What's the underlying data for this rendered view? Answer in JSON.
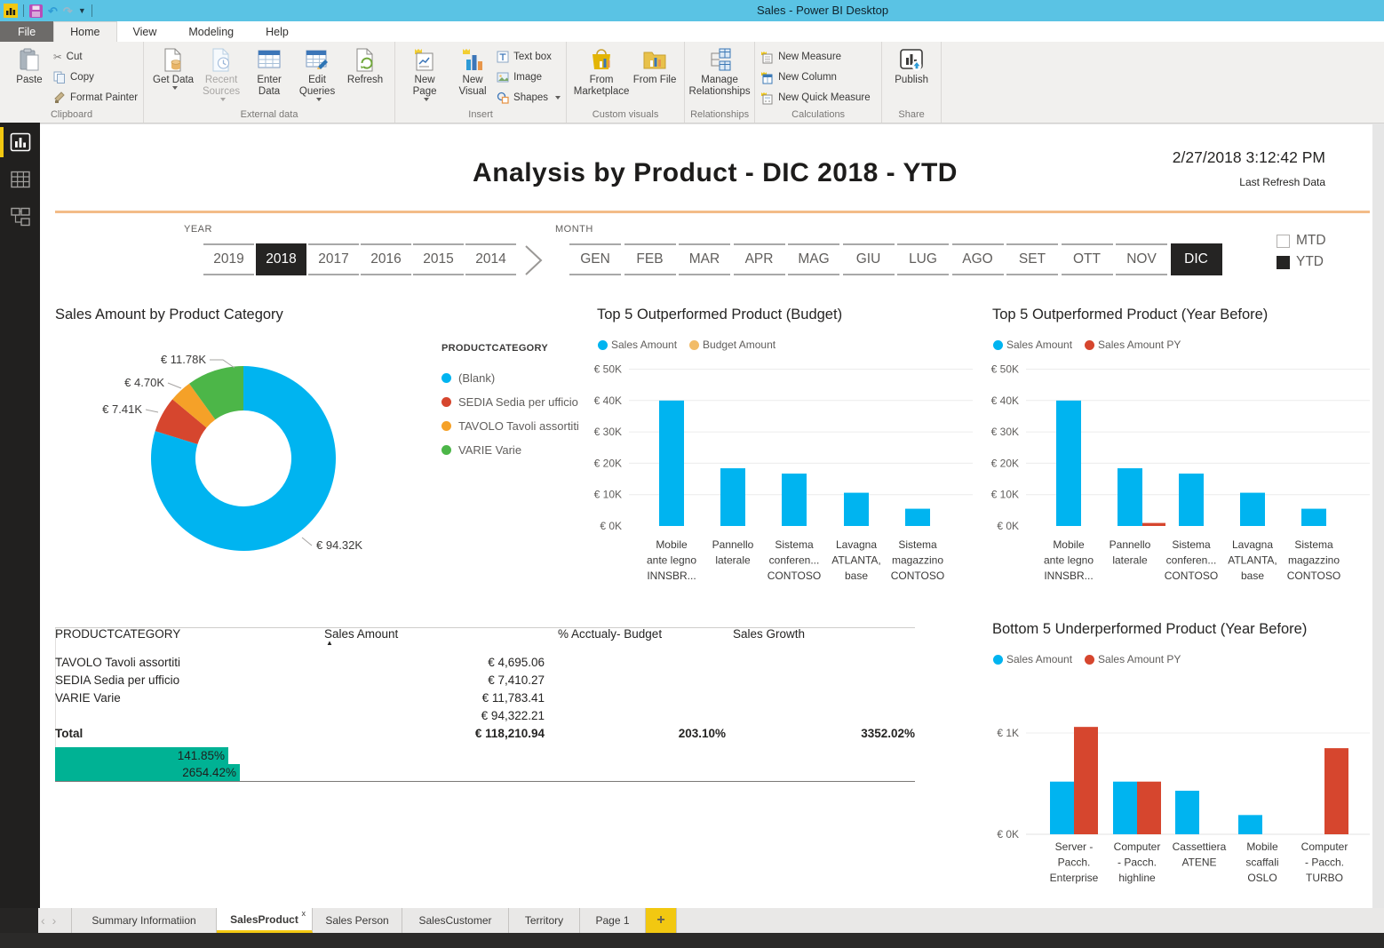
{
  "window": {
    "title": "Sales - Power BI Desktop"
  },
  "icons": {
    "prev_page": "‹",
    "next_page": "›",
    "sort_asc": "▲"
  },
  "ribbon": {
    "tabs": [
      "File",
      "Home",
      "View",
      "Modeling",
      "Help"
    ],
    "active_tab": "Home",
    "clipboard": {
      "label": "Clipboard",
      "paste": "Paste",
      "cut": "Cut",
      "copy": "Copy",
      "format_painter": "Format Painter"
    },
    "external_data": {
      "label": "External data",
      "get_data": "Get Data",
      "recent_sources": "Recent Sources",
      "enter_data": "Enter Data",
      "edit_queries": "Edit Queries",
      "refresh": "Refresh"
    },
    "insert": {
      "label": "Insert",
      "new_page": "New Page",
      "new_visual": "New Visual",
      "text_box": "Text box",
      "image": "Image",
      "shapes": "Shapes"
    },
    "custom_visuals": {
      "label": "Custom visuals",
      "from_marketplace": "From Marketplace",
      "from_file": "From File"
    },
    "relationships": {
      "label": "Relationships",
      "manage": "Manage Relationships"
    },
    "calculations": {
      "label": "Calculations",
      "new_measure": "New Measure",
      "new_column": "New Column",
      "new_quick_measure": "New Quick Measure"
    },
    "share": {
      "label": "Share",
      "publish": "Publish"
    }
  },
  "report": {
    "title": "Analysis by Product - DIC 2018 - YTD",
    "refresh_time": "2/27/2018 3:12:42 PM",
    "refresh_label": "Last Refresh Data",
    "year": {
      "label": "YEAR",
      "options": [
        "2019",
        "2018",
        "2017",
        "2016",
        "2015",
        "2014"
      ],
      "selected": "2018"
    },
    "month": {
      "label": "MONTH",
      "options": [
        "GEN",
        "FEB",
        "MAR",
        "APR",
        "MAG",
        "GIU",
        "LUG",
        "AGO",
        "SET",
        "OTT",
        "NOV",
        "DIC"
      ],
      "selected": "DIC"
    },
    "period": {
      "options": [
        "MTD",
        "YTD"
      ],
      "selected": "YTD"
    }
  },
  "chart_data": [
    {
      "type": "pie",
      "title": "Sales Amount by Product Category",
      "legend_title": "PRODUCTCATEGORY",
      "slices": [
        {
          "label": "(Blank)",
          "value_k": 94.32,
          "display": "€ 94.32K",
          "color": "#00b4f0"
        },
        {
          "label": "SEDIA Sedia per ufficio",
          "value_k": 7.41,
          "display": "€ 7.41K",
          "color": "#d6462e"
        },
        {
          "label": "TAVOLO Tavoli assortiti",
          "value_k": 4.7,
          "display": "€ 4.70K",
          "color": "#f5a128"
        },
        {
          "label": "VARIE Varie",
          "value_k": 11.78,
          "display": "€ 11.78K",
          "color": "#4cb648"
        }
      ]
    },
    {
      "type": "bar",
      "title": "Top 5 Outperformed Product (Budget)",
      "legend": [
        {
          "name": "Sales Amount",
          "color": "#00b4f0"
        },
        {
          "name": "Budget Amount",
          "color": "#f2bc68"
        }
      ],
      "categories": [
        [
          "Mobile",
          "ante legno",
          "INNSBR..."
        ],
        [
          "Pannello",
          "laterale"
        ],
        [
          "Sistema",
          "conferen...",
          "CONTOSO"
        ],
        [
          "Lavagna",
          "ATLANTA,",
          "base"
        ],
        [
          "Sistema",
          "magazzino",
          "CONTOSO"
        ]
      ],
      "series": [
        {
          "name": "Sales Amount",
          "values_k": [
            40,
            18.4,
            16.7,
            10.6,
            5.5
          ]
        },
        {
          "name": "Budget Amount",
          "values_k": [
            0,
            0,
            0,
            0,
            0
          ]
        }
      ],
      "yticks": [
        {
          "k": 0,
          "label": "€ 0K",
          "grid": false
        },
        {
          "k": 10,
          "label": "€ 10K",
          "grid": true
        },
        {
          "k": 20,
          "label": "€ 20K",
          "grid": true
        },
        {
          "k": 30,
          "label": "€ 30K",
          "grid": true
        },
        {
          "k": 40,
          "label": "€ 40K",
          "grid": true
        },
        {
          "k": 50,
          "label": "€ 50K",
          "grid": true
        }
      ]
    },
    {
      "type": "bar",
      "title": "Top 5 Outperformed Product (Year Before)",
      "legend": [
        {
          "name": "Sales Amount",
          "color": "#00b4f0"
        },
        {
          "name": "Sales Amount PY",
          "color": "#d6462e"
        }
      ],
      "categories": [
        [
          "Mobile",
          "ante legno",
          "INNSBR..."
        ],
        [
          "Pannello",
          "laterale"
        ],
        [
          "Sistema",
          "conferen...",
          "CONTOSO"
        ],
        [
          "Lavagna",
          "ATLANTA,",
          "base"
        ],
        [
          "Sistema",
          "magazzino",
          "CONTOSO"
        ]
      ],
      "series": [
        {
          "name": "Sales Amount",
          "values_k": [
            40,
            18.4,
            16.7,
            10.6,
            5.5
          ]
        },
        {
          "name": "Sales Amount PY",
          "values_k": [
            0,
            0.96,
            0,
            0,
            0
          ]
        }
      ],
      "yticks": [
        {
          "k": 0,
          "label": "€ 0K",
          "grid": false
        },
        {
          "k": 10,
          "label": "€ 10K",
          "grid": true
        },
        {
          "k": 20,
          "label": "€ 20K",
          "grid": true
        },
        {
          "k": 30,
          "label": "€ 30K",
          "grid": true
        },
        {
          "k": 40,
          "label": "€ 40K",
          "grid": true
        },
        {
          "k": 50,
          "label": "€ 50K",
          "grid": true
        }
      ]
    },
    {
      "type": "table",
      "columns": [
        "PRODUCTCATEGORY",
        "Sales Amount",
        "% Acctualy- Budget",
        "Sales Growth"
      ],
      "sort_column": "Sales Amount",
      "rows": [
        {
          "category": "TAVOLO Tavoli assortiti",
          "sales": "€ 4,695.06",
          "pct_budget": "",
          "growth": "",
          "highlight": false
        },
        {
          "category": "SEDIA Sedia per ufficio",
          "sales": "€ 7,410.27",
          "pct_budget": "",
          "growth": "",
          "highlight": false
        },
        {
          "category": "VARIE Varie",
          "sales": "€ 11,783.41",
          "pct_budget": "",
          "growth": "",
          "highlight": false
        },
        {
          "category": "",
          "sales": "€ 94,322.21",
          "pct_budget": "141.85%",
          "growth": "2654.42%",
          "highlight": true
        }
      ],
      "total": {
        "label": "Total",
        "sales": "€ 118,210.94",
        "pct_budget": "203.10%",
        "growth": "3352.02%"
      },
      "highlight_color": "#00b294"
    },
    {
      "type": "bar",
      "title": "Bottom 5 Underperformed Product (Year Before)",
      "legend": [
        {
          "name": "Sales Amount",
          "color": "#00b4f0"
        },
        {
          "name": "Sales Amount PY",
          "color": "#d6462e"
        }
      ],
      "categories": [
        [
          "Server -",
          "Pacch.",
          "Enterprise"
        ],
        [
          "Computer",
          "- Pacch.",
          "highline"
        ],
        [
          "Cassettiera",
          "ATENE"
        ],
        [
          "Mobile",
          "scaffali",
          "OSLO"
        ],
        [
          "Computer",
          "- Pacch.",
          "TURBO"
        ]
      ],
      "series": [
        {
          "name": "Sales Amount",
          "values_k": [
            0.52,
            0.52,
            0.43,
            0.19,
            0
          ]
        },
        {
          "name": "Sales Amount PY",
          "values_k": [
            1.06,
            0.52,
            0,
            0,
            0.85
          ]
        }
      ],
      "yticks": [
        {
          "k": 0,
          "label": "€ 0K",
          "grid": true
        },
        {
          "k": 1,
          "label": "€ 1K",
          "grid": true
        }
      ]
    }
  ],
  "pages": {
    "items": [
      "Summary Informatiion",
      "SalesProduct",
      "Sales Person",
      "SalesCustomer",
      "Territory",
      "Page 1"
    ],
    "active": "SalesProduct",
    "close_label": "x",
    "add_label": "+"
  }
}
